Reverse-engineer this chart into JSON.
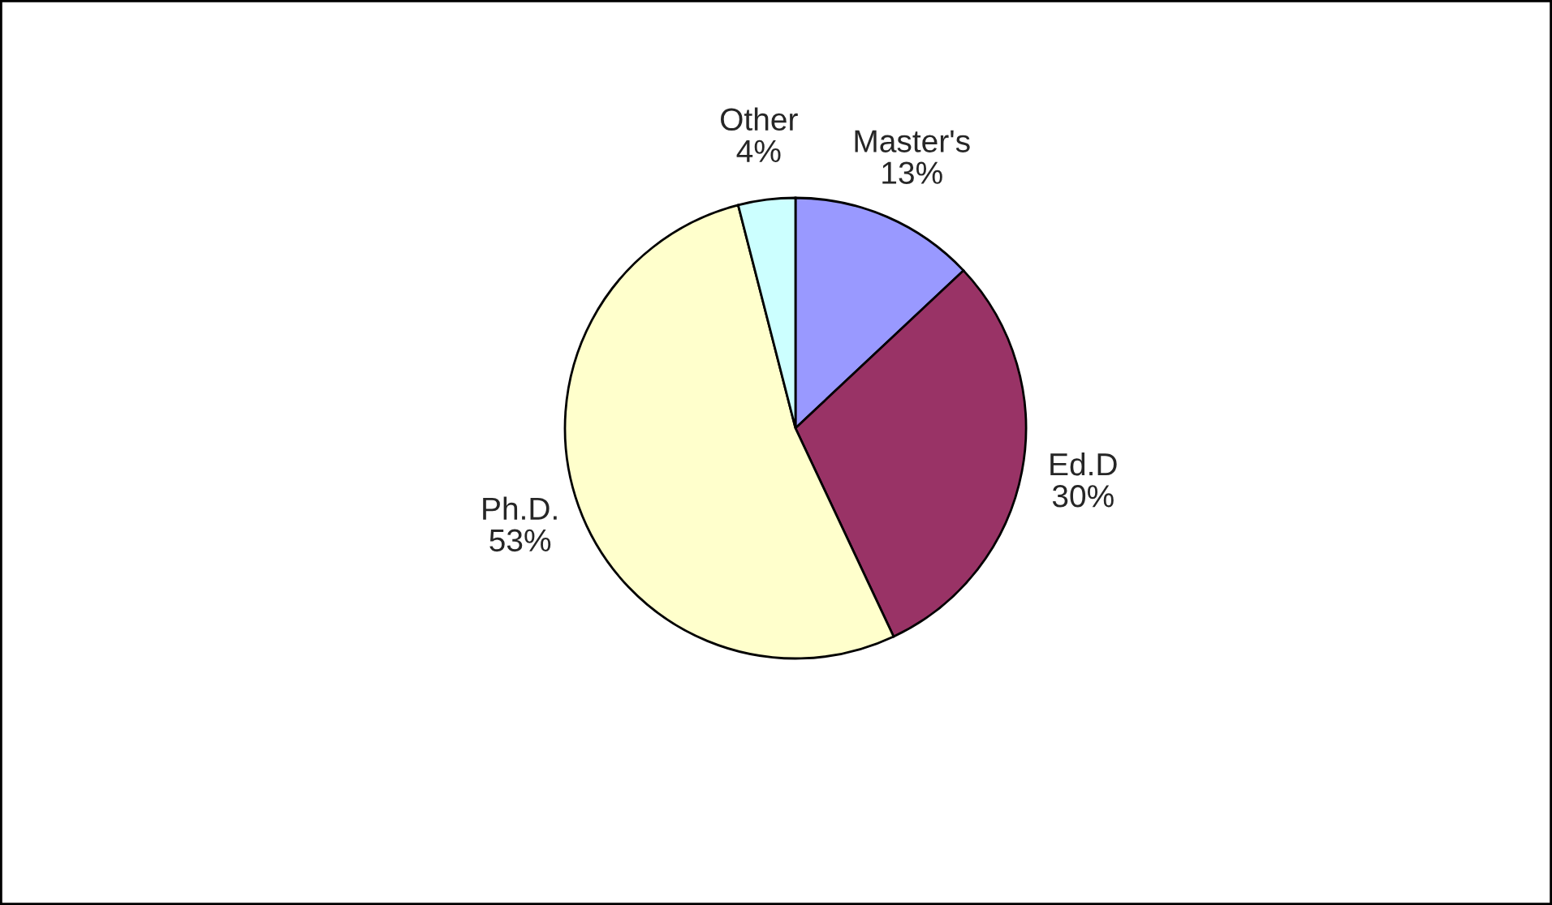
{
  "chart_data": {
    "type": "pie",
    "categories": [
      "Master's",
      "Ed.D",
      "Ph.D.",
      "Other"
    ],
    "values": [
      13,
      30,
      53,
      4
    ],
    "value_labels": [
      "13%",
      "30%",
      "53%",
      "4%"
    ],
    "colors": [
      "#9999ff",
      "#993366",
      "#ffffcc",
      "#ccffff"
    ]
  }
}
